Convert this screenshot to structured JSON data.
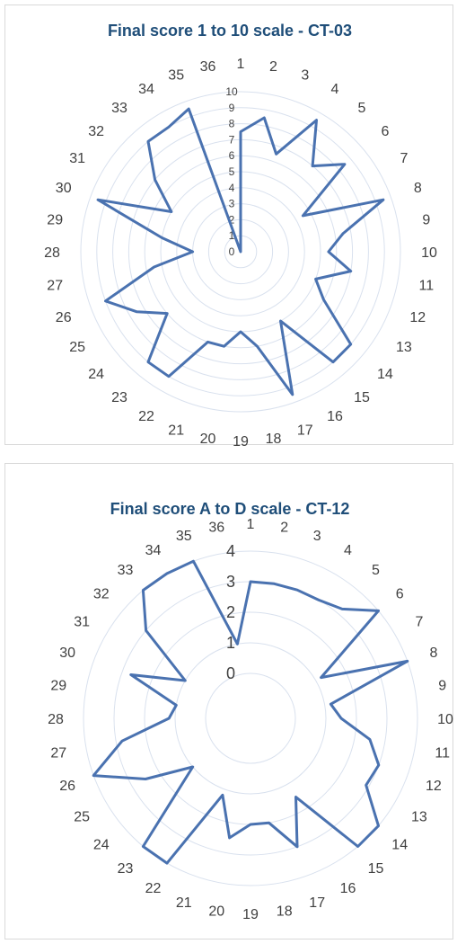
{
  "chart_data": [
    {
      "type": "radar",
      "title": "Final score 1 to 10 scale - CT-03",
      "categories": [
        "1",
        "2",
        "3",
        "4",
        "5",
        "6",
        "7",
        "8",
        "9",
        "10",
        "11",
        "12",
        "13",
        "14",
        "15",
        "16",
        "17",
        "18",
        "19",
        "20",
        "21",
        "22",
        "23",
        "24",
        "25",
        "26",
        "27",
        "28",
        "29",
        "30",
        "31",
        "32",
        "33",
        "34",
        "35",
        "36"
      ],
      "values": [
        7.5,
        8.5,
        6.5,
        9.5,
        7,
        8.5,
        4.5,
        9.5,
        6.5,
        5.5,
        7,
        5,
        6,
        9,
        9,
        5,
        9.5,
        6,
        5,
        6,
        6,
        9,
        9,
        6,
        7.5,
        9,
        5.5,
        3,
        5,
        9.5,
        5,
        7,
        9,
        9,
        9.5,
        0
      ],
      "r_ticks": [
        "0",
        "1",
        "2",
        "3",
        "4",
        "5",
        "6",
        "7",
        "8",
        "9",
        "10"
      ],
      "r_range": [
        0,
        10
      ],
      "grid": true,
      "line_color": "#4a72b0",
      "grid_color": "#d9e1ee"
    },
    {
      "type": "radar",
      "title": "Final score A to D scale - CT-12",
      "categories": [
        "1",
        "2",
        "3",
        "4",
        "5",
        "6",
        "7",
        "8",
        "9",
        "10",
        "11",
        "12",
        "13",
        "14",
        "15",
        "16",
        "17",
        "18",
        "19",
        "20",
        "21",
        "22",
        "23",
        "24",
        "25",
        "26",
        "27",
        "28",
        "29",
        "30",
        "31",
        "32",
        "33",
        "34",
        "35",
        "36"
      ],
      "values": [
        3,
        3,
        3,
        3,
        3.2,
        4,
        1.2,
        4,
        1.2,
        1.5,
        2.5,
        3,
        2.9,
        4,
        4,
        1.5,
        3,
        2,
        2,
        2.5,
        1.2,
        4,
        4,
        1,
        2.5,
        4,
        2.8,
        1.2,
        1,
        2.7,
        1,
        3,
        4,
        4,
        4,
        1
      ],
      "r_ticks": [
        "0",
        "1",
        "2",
        "3",
        "4"
      ],
      "r_range": [
        0,
        4
      ],
      "grid": true,
      "line_color": "#4a72b0",
      "grid_color": "#d9e1ee"
    }
  ]
}
